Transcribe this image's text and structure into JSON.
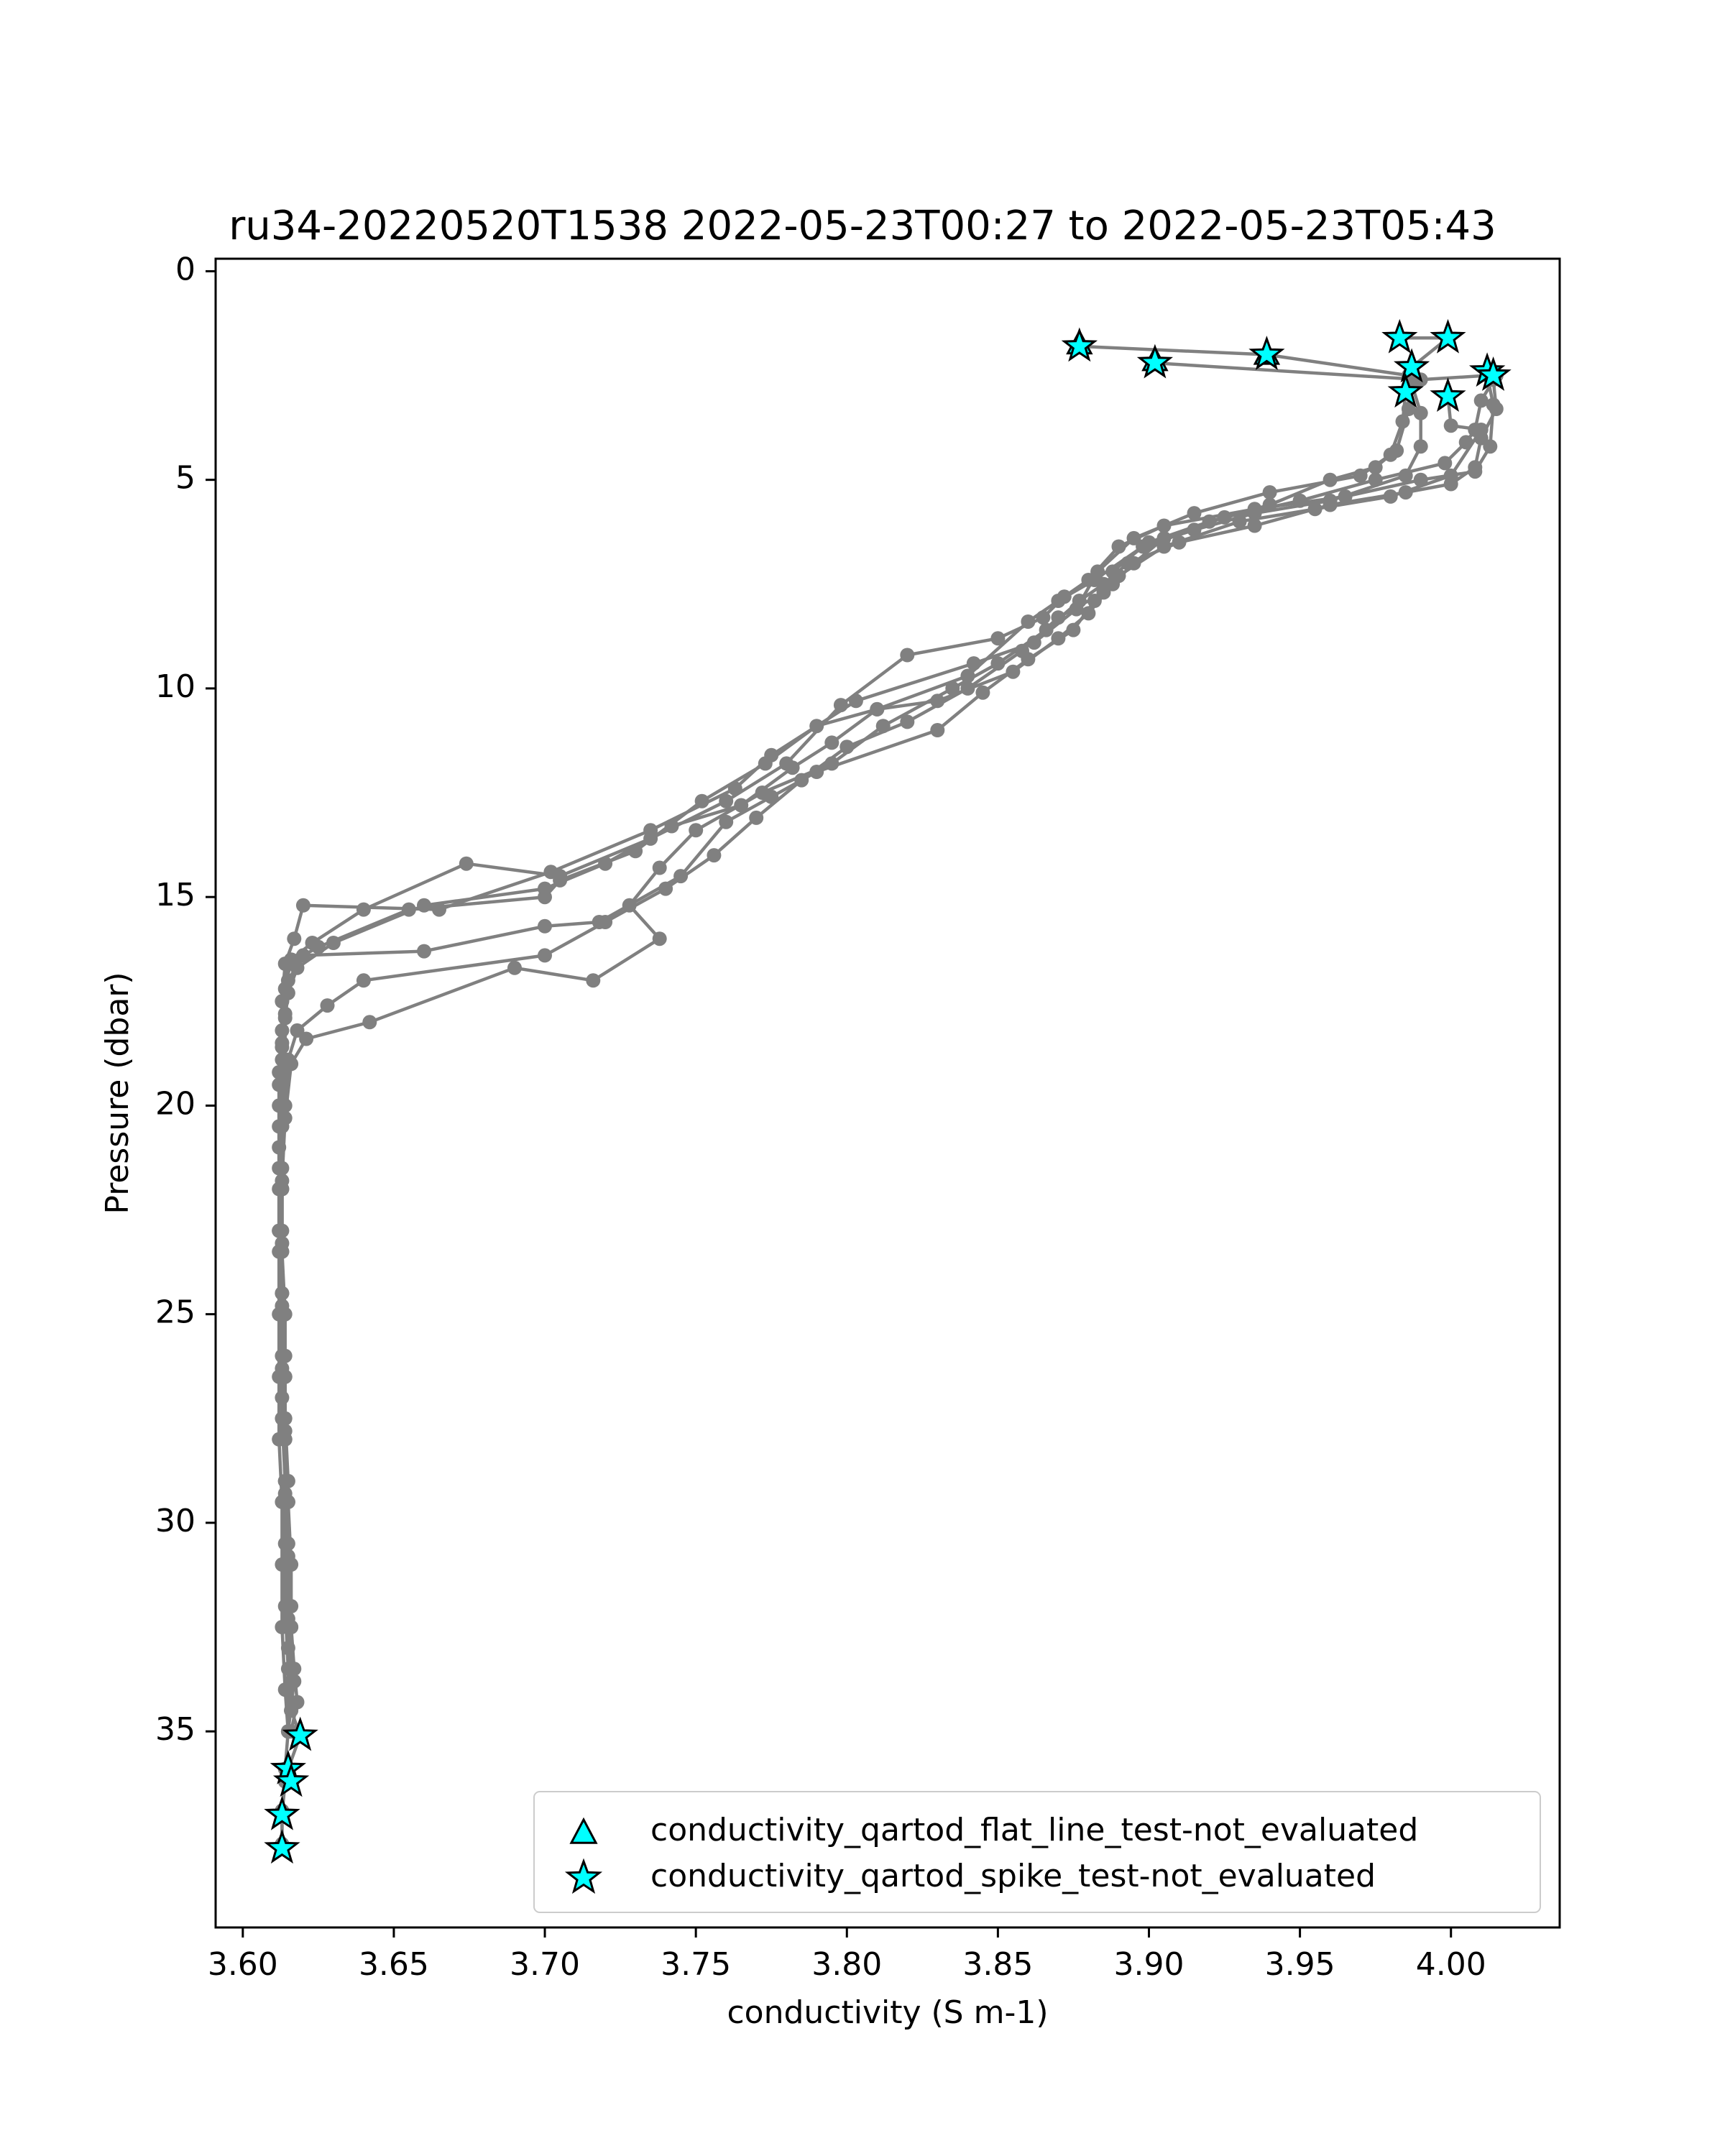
{
  "chart_data": {
    "type": "scatter",
    "title": "ru34-20220520T1538 2022-05-23T00:27 to 2022-05-23T05:43",
    "xlabel": "conductivity (S m-1)",
    "ylabel": "Pressure (dbar)",
    "xlim": [
      3.591,
      4.036
    ],
    "ylim": [
      39.7,
      -0.3
    ],
    "y_inverted": true,
    "x_ticks": [
      3.6,
      3.65,
      3.7,
      3.75,
      3.8,
      3.85,
      3.9,
      3.95,
      4.0
    ],
    "x_tick_labels": [
      "3.60",
      "3.65",
      "3.70",
      "3.75",
      "3.80",
      "3.85",
      "3.90",
      "3.95",
      "4.00"
    ],
    "y_ticks": [
      0,
      5,
      10,
      15,
      20,
      25,
      30,
      35
    ],
    "y_tick_labels": [
      "0",
      "5",
      "10",
      "15",
      "20",
      "25",
      "30",
      "35"
    ],
    "grid": false,
    "legend_position": "lower right",
    "colors": {
      "profile_line": "#808080",
      "flag_marker_fill": "#00ffff",
      "flag_marker_edge": "#000000"
    },
    "series": [
      {
        "name": "",
        "style": "line-with-dots",
        "points": [
          [
            3.877,
            1.8
          ],
          [
            3.939,
            2.0
          ],
          [
            3.986,
            2.5
          ],
          [
            3.986,
            3.3
          ],
          [
            3.982,
            4.3
          ],
          [
            3.97,
            4.9
          ],
          [
            3.94,
            5.3
          ],
          [
            3.915,
            5.8
          ],
          [
            3.895,
            6.4
          ],
          [
            3.883,
            7.2
          ],
          [
            3.876,
            8.1
          ],
          [
            3.862,
            8.9
          ],
          [
            3.842,
            9.4
          ],
          [
            3.803,
            10.3
          ],
          [
            3.775,
            11.6
          ],
          [
            3.763,
            12.4
          ],
          [
            3.735,
            13.4
          ],
          [
            3.702,
            14.4
          ],
          [
            3.665,
            15.3
          ],
          [
            3.62,
            15.2
          ],
          [
            3.617,
            16.0
          ],
          [
            3.614,
            16.6
          ],
          [
            3.613,
            17.5
          ],
          [
            3.613,
            18.5
          ],
          [
            3.612,
            19.5
          ],
          [
            3.612,
            20.5
          ],
          [
            3.612,
            22.0
          ],
          [
            3.612,
            23.5
          ],
          [
            3.612,
            25.0
          ],
          [
            3.612,
            26.5
          ],
          [
            3.612,
            28.0
          ],
          [
            3.613,
            29.5
          ],
          [
            3.613,
            31.0
          ],
          [
            3.613,
            32.5
          ],
          [
            3.614,
            34.0
          ],
          [
            3.615,
            35.0
          ],
          [
            3.614,
            35.9
          ],
          [
            3.613,
            36.9
          ],
          [
            3.613,
            37.8
          ]
        ]
      },
      {
        "name": "",
        "style": "line-with-dots",
        "points": [
          [
            3.902,
            2.2
          ],
          [
            3.99,
            2.6
          ],
          [
            4.012,
            2.5
          ],
          [
            4.014,
            3.2
          ],
          [
            4.013,
            4.2
          ],
          [
            4.008,
            4.8
          ],
          [
            3.99,
            5.0
          ],
          [
            3.965,
            5.4
          ],
          [
            3.935,
            5.7
          ],
          [
            3.905,
            6.1
          ],
          [
            3.89,
            6.6
          ],
          [
            3.88,
            7.4
          ],
          [
            3.872,
            7.8
          ],
          [
            3.865,
            8.3
          ],
          [
            3.85,
            8.8
          ],
          [
            3.82,
            9.2
          ],
          [
            3.798,
            10.4
          ],
          [
            3.78,
            11.8
          ],
          [
            3.76,
            12.7
          ],
          [
            3.735,
            13.6
          ],
          [
            3.705,
            14.5
          ],
          [
            3.674,
            14.2
          ],
          [
            3.64,
            15.3
          ],
          [
            3.623,
            16.1
          ],
          [
            3.616,
            16.5
          ],
          [
            3.614,
            17.2
          ],
          [
            3.613,
            18.2
          ],
          [
            3.612,
            19.2
          ],
          [
            3.612,
            21.0
          ],
          [
            3.612,
            23.0
          ],
          [
            3.613,
            25.0
          ],
          [
            3.613,
            27.0
          ],
          [
            3.614,
            29.0
          ],
          [
            3.614,
            31.0
          ],
          [
            3.615,
            33.0
          ],
          [
            3.616,
            34.5
          ],
          [
            3.619,
            35.1
          ],
          [
            3.615,
            35.9
          ],
          [
            3.614,
            36.2
          ],
          [
            3.613,
            37.0
          ],
          [
            3.613,
            37.7
          ]
        ]
      },
      {
        "name": "",
        "style": "line-with-dots",
        "points": [
          [
            3.983,
            1.6
          ],
          [
            3.999,
            1.6
          ],
          [
            3.987,
            2.3
          ],
          [
            3.985,
            2.9
          ],
          [
            3.984,
            3.6
          ],
          [
            3.98,
            4.4
          ],
          [
            3.975,
            4.7
          ],
          [
            3.96,
            5.0
          ],
          [
            3.94,
            5.6
          ],
          [
            3.92,
            6.0
          ],
          [
            3.9,
            6.5
          ],
          [
            3.882,
            7.4
          ],
          [
            3.87,
            7.9
          ],
          [
            3.86,
            8.4
          ],
          [
            3.84,
            9.7
          ],
          [
            3.81,
            10.5
          ],
          [
            3.79,
            10.9
          ],
          [
            3.773,
            11.8
          ],
          [
            3.752,
            12.7
          ],
          [
            3.73,
            13.9
          ],
          [
            3.705,
            14.6
          ],
          [
            3.7,
            15.0
          ],
          [
            3.655,
            15.3
          ],
          [
            3.625,
            16.2
          ],
          [
            3.615,
            16.6
          ],
          [
            3.613,
            17.5
          ],
          [
            3.613,
            18.6
          ],
          [
            3.612,
            20.0
          ],
          [
            3.612,
            21.5
          ],
          [
            3.612,
            23.0
          ],
          [
            3.613,
            24.5
          ],
          [
            3.613,
            26.0
          ],
          [
            3.613,
            27.5
          ],
          [
            3.614,
            29.0
          ],
          [
            3.614,
            30.5
          ],
          [
            3.614,
            32.0
          ],
          [
            3.615,
            33.5
          ],
          [
            3.615,
            35.0
          ]
        ]
      },
      {
        "name": "",
        "style": "line-with-dots",
        "points": [
          [
            3.999,
            3.0
          ],
          [
            4.0,
            3.7
          ],
          [
            4.01,
            3.8
          ],
          [
            4.0,
            4.9
          ],
          [
            3.98,
            5.4
          ],
          [
            3.955,
            5.7
          ],
          [
            3.93,
            6.0
          ],
          [
            3.905,
            6.6
          ],
          [
            3.89,
            7.3
          ],
          [
            3.882,
            7.9
          ],
          [
            3.875,
            8.6
          ],
          [
            3.86,
            9.3
          ],
          [
            3.845,
            10.1
          ],
          [
            3.83,
            11.0
          ],
          [
            3.79,
            12.0
          ],
          [
            3.775,
            12.6
          ],
          [
            3.76,
            13.2
          ],
          [
            3.745,
            14.5
          ],
          [
            3.718,
            15.6
          ],
          [
            3.7,
            15.7
          ],
          [
            3.66,
            16.3
          ],
          [
            3.62,
            16.4
          ],
          [
            3.615,
            17.0
          ],
          [
            3.614,
            17.8
          ],
          [
            3.613,
            18.9
          ],
          [
            3.613,
            20.5
          ],
          [
            3.613,
            22.0
          ],
          [
            3.613,
            23.5
          ],
          [
            3.614,
            25.0
          ],
          [
            3.614,
            26.5
          ],
          [
            3.614,
            28.0
          ],
          [
            3.615,
            29.5
          ],
          [
            3.616,
            31.0
          ],
          [
            3.616,
            32.5
          ],
          [
            3.617,
            33.8
          ],
          [
            3.615,
            35.0
          ]
        ]
      },
      {
        "name": "",
        "style": "line-with-dots",
        "points": [
          [
            4.012,
            2.4
          ],
          [
            4.015,
            2.5
          ],
          [
            4.01,
            3.1
          ],
          [
            4.008,
            3.8
          ],
          [
            4.005,
            4.1
          ],
          [
            3.998,
            4.6
          ],
          [
            3.975,
            5.0
          ],
          [
            3.95,
            5.5
          ],
          [
            3.925,
            5.9
          ],
          [
            3.905,
            6.4
          ],
          [
            3.895,
            7.0
          ],
          [
            3.888,
            7.5
          ],
          [
            3.88,
            8.2
          ],
          [
            3.87,
            8.8
          ],
          [
            3.855,
            9.6
          ],
          [
            3.83,
            10.3
          ],
          [
            3.81,
            10.5
          ],
          [
            3.795,
            11.3
          ],
          [
            3.782,
            11.9
          ],
          [
            3.765,
            12.8
          ],
          [
            3.742,
            13.3
          ],
          [
            3.72,
            14.2
          ],
          [
            3.7,
            14.8
          ],
          [
            3.66,
            15.2
          ],
          [
            3.63,
            16.1
          ],
          [
            3.618,
            16.7
          ],
          [
            3.615,
            17.3
          ],
          [
            3.614,
            17.9
          ],
          [
            3.614,
            19.0
          ],
          [
            3.613,
            20.5
          ],
          [
            3.613,
            22.0
          ],
          [
            3.613,
            23.5
          ],
          [
            3.613,
            25.0
          ],
          [
            3.614,
            26.5
          ],
          [
            3.614,
            28.0
          ],
          [
            3.615,
            29.5
          ],
          [
            3.615,
            31.0
          ],
          [
            3.616,
            32.5
          ],
          [
            3.617,
            33.5
          ],
          [
            3.618,
            34.3
          ],
          [
            3.616,
            35.0
          ]
        ]
      },
      {
        "name": "",
        "style": "line-with-dots",
        "points": [
          [
            3.987,
            2.7
          ],
          [
            3.99,
            3.4
          ],
          [
            3.99,
            4.2
          ],
          [
            3.985,
            4.9
          ],
          [
            3.96,
            5.5
          ],
          [
            3.935,
            5.8
          ],
          [
            3.915,
            6.2
          ],
          [
            3.898,
            6.6
          ],
          [
            3.888,
            7.2
          ],
          [
            3.885,
            7.7
          ],
          [
            3.87,
            8.3
          ],
          [
            3.858,
            9.1
          ],
          [
            3.84,
            10.0
          ],
          [
            3.82,
            10.8
          ],
          [
            3.8,
            11.4
          ],
          [
            3.785,
            12.2
          ],
          [
            3.77,
            13.1
          ],
          [
            3.756,
            14.0
          ],
          [
            3.74,
            14.8
          ],
          [
            3.72,
            15.6
          ],
          [
            3.7,
            16.4
          ],
          [
            3.64,
            17.0
          ],
          [
            3.628,
            17.6
          ],
          [
            3.618,
            18.2
          ],
          [
            3.615,
            18.9
          ],
          [
            3.614,
            20.0
          ],
          [
            3.613,
            21.5
          ],
          [
            3.613,
            23.0
          ],
          [
            3.613,
            24.5
          ],
          [
            3.614,
            26.0
          ],
          [
            3.614,
            27.5
          ],
          [
            3.615,
            29.0
          ],
          [
            3.615,
            30.5
          ],
          [
            3.616,
            32.0
          ],
          [
            3.616,
            33.5
          ],
          [
            3.616,
            34.5
          ]
        ]
      },
      {
        "name": "",
        "style": "line-with-dots",
        "points": [
          [
            4.014,
            2.6
          ],
          [
            4.015,
            3.3
          ],
          [
            4.01,
            4.0
          ],
          [
            4.008,
            4.7
          ],
          [
            4.0,
            5.1
          ],
          [
            3.985,
            5.3
          ],
          [
            3.96,
            5.6
          ],
          [
            3.935,
            6.1
          ],
          [
            3.91,
            6.5
          ],
          [
            3.893,
            7.0
          ],
          [
            3.885,
            7.5
          ],
          [
            3.877,
            7.9
          ],
          [
            3.866,
            8.6
          ],
          [
            3.85,
            9.4
          ],
          [
            3.835,
            10.0
          ],
          [
            3.812,
            10.9
          ],
          [
            3.795,
            11.8
          ],
          [
            3.772,
            12.5
          ],
          [
            3.75,
            13.4
          ],
          [
            3.738,
            14.3
          ],
          [
            3.728,
            15.2
          ],
          [
            3.738,
            16.0
          ],
          [
            3.716,
            17.0
          ],
          [
            3.69,
            16.7
          ],
          [
            3.642,
            18.0
          ],
          [
            3.621,
            18.4
          ],
          [
            3.616,
            19.0
          ],
          [
            3.614,
            20.3
          ],
          [
            3.613,
            21.8
          ],
          [
            3.613,
            23.3
          ],
          [
            3.613,
            24.8
          ],
          [
            3.613,
            26.3
          ],
          [
            3.614,
            27.8
          ],
          [
            3.614,
            29.3
          ],
          [
            3.615,
            30.8
          ],
          [
            3.615,
            32.3
          ],
          [
            3.616,
            33.8
          ]
        ]
      }
    ],
    "flags": [
      {
        "name": "conductivity_qartod_flat_line_test-not_evaluated",
        "marker": "triangle",
        "points": [
          [
            3.877,
            1.75
          ],
          [
            3.902,
            2.15
          ],
          [
            3.939,
            2.0
          ]
        ]
      },
      {
        "name": "conductivity_qartod_spike_test-not_evaluated",
        "marker": "star",
        "points": [
          [
            3.877,
            1.8
          ],
          [
            3.902,
            2.2
          ],
          [
            3.939,
            2.0
          ],
          [
            3.983,
            1.6
          ],
          [
            3.999,
            1.6
          ],
          [
            3.987,
            2.3
          ],
          [
            4.012,
            2.4
          ],
          [
            4.014,
            2.5
          ],
          [
            3.985,
            2.9
          ],
          [
            3.999,
            3.0
          ],
          [
            3.619,
            35.1
          ],
          [
            3.615,
            35.9
          ],
          [
            3.616,
            36.2
          ],
          [
            3.613,
            37.0
          ],
          [
            3.613,
            37.8
          ]
        ]
      }
    ]
  }
}
